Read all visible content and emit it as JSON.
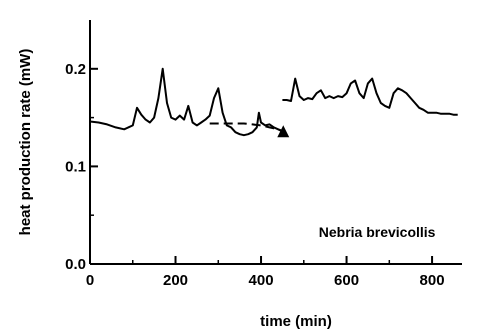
{
  "chart_data": {
    "type": "line",
    "title": "",
    "xlabel": "time (min)",
    "ylabel": "heat production rate (mW)",
    "xlim": [
      0,
      870
    ],
    "ylim": [
      0,
      0.25
    ],
    "xticks": [
      0,
      200,
      400,
      600,
      800
    ],
    "xtick_labels": [
      "0",
      "200",
      "400",
      "600",
      "800"
    ],
    "yticks": [
      0.0,
      0.1,
      0.2
    ],
    "ytick_labels": [
      "0.0",
      "0.1",
      "0.2"
    ],
    "grid": false,
    "legend": "none",
    "annotation": "Nebria brevicollis",
    "series": [
      {
        "style": "solid",
        "x": [
          0,
          20,
          40,
          60,
          80,
          100,
          110,
          120,
          130,
          140,
          150,
          160,
          170,
          180,
          190,
          200,
          210,
          220,
          230,
          240,
          250,
          260,
          270,
          280,
          290,
          300,
          310,
          320,
          330,
          340,
          350,
          360,
          370,
          380,
          390,
          395,
          400,
          410,
          420,
          430,
          440,
          450
        ],
        "y": [
          0.146,
          0.145,
          0.143,
          0.14,
          0.138,
          0.142,
          0.16,
          0.153,
          0.148,
          0.145,
          0.15,
          0.17,
          0.2,
          0.165,
          0.15,
          0.148,
          0.152,
          0.148,
          0.162,
          0.145,
          0.142,
          0.145,
          0.148,
          0.152,
          0.17,
          0.18,
          0.155,
          0.142,
          0.14,
          0.135,
          0.133,
          0.132,
          0.133,
          0.135,
          0.14,
          0.155,
          0.145,
          0.142,
          0.143,
          0.14,
          0.138,
          0.136
        ]
      },
      {
        "style": "dashed",
        "x": [
          280,
          300,
          320,
          340,
          360,
          380,
          400,
          420,
          440,
          452
        ],
        "y": [
          0.144,
          0.144,
          0.144,
          0.144,
          0.144,
          0.143,
          0.142,
          0.14,
          0.138,
          0.136
        ]
      },
      {
        "style": "solid",
        "x": [
          450,
          460,
          470,
          480,
          490,
          500,
          510,
          520,
          530,
          540,
          550,
          560,
          570,
          580,
          590,
          600,
          610,
          620,
          630,
          640,
          650,
          660,
          670,
          680,
          690,
          700,
          710,
          720,
          730,
          740,
          750,
          760,
          770,
          780,
          790,
          800,
          810,
          820,
          830,
          840,
          850,
          860
        ],
        "y": [
          0.168,
          0.168,
          0.167,
          0.19,
          0.172,
          0.168,
          0.17,
          0.169,
          0.175,
          0.178,
          0.17,
          0.172,
          0.17,
          0.172,
          0.171,
          0.175,
          0.185,
          0.188,
          0.175,
          0.17,
          0.185,
          0.19,
          0.175,
          0.165,
          0.162,
          0.16,
          0.175,
          0.18,
          0.178,
          0.175,
          0.17,
          0.165,
          0.16,
          0.158,
          0.155,
          0.155,
          0.155,
          0.154,
          0.154,
          0.154,
          0.153,
          0.153
        ]
      }
    ],
    "marker": {
      "shape": "triangle",
      "x": 452,
      "y": 0.136
    }
  }
}
